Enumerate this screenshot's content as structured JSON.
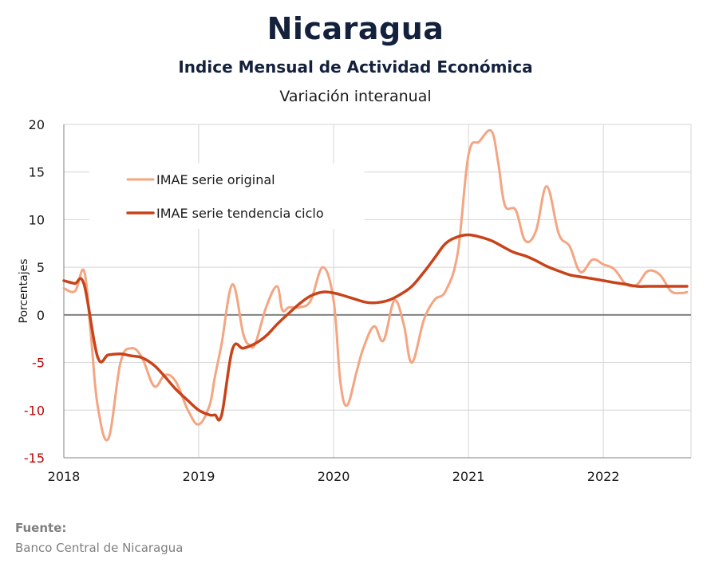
{
  "header": {
    "title": "Nicaragua",
    "subtitle": "Indice Mensual de  Actividad Económica",
    "subsubtitle": "Variación interanual"
  },
  "source": {
    "label": "Fuente:",
    "text": "Banco Central de Nicaragua"
  },
  "chart_data": {
    "type": "line",
    "title": "Nicaragua",
    "subtitle": "Variación interanual",
    "ylabel": "Porcentajes",
    "xlabel": "",
    "ylim": [
      -15,
      20
    ],
    "yticks": [
      20,
      15,
      10,
      5,
      0,
      -5,
      -10,
      -15
    ],
    "xlim": [
      2018.0,
      2022.65
    ],
    "xticks": [
      2018,
      2019,
      2020,
      2021,
      2022
    ],
    "xtick_labels": [
      "2018",
      "2019",
      "2020",
      "2021",
      "2022"
    ],
    "grid": true,
    "negative_tick_color": "#c00000",
    "legend_position": "upper-left",
    "series": [
      {
        "name": "IMAE serie original",
        "color": "#f4a582",
        "x": [
          2018.0,
          2018.083,
          2018.15,
          2018.2,
          2018.25,
          2018.33,
          2018.42,
          2018.5,
          2018.58,
          2018.67,
          2018.75,
          2018.83,
          2018.92,
          2019.0,
          2019.08,
          2019.12,
          2019.17,
          2019.25,
          2019.33,
          2019.38,
          2019.42,
          2019.5,
          2019.58,
          2019.62,
          2019.67,
          2019.75,
          2019.83,
          2019.92,
          2020.0,
          2020.05,
          2020.1,
          2020.17,
          2020.22,
          2020.3,
          2020.37,
          2020.45,
          2020.52,
          2020.58,
          2020.67,
          2020.75,
          2020.83,
          2020.92,
          2021.0,
          2021.08,
          2021.17,
          2021.22,
          2021.27,
          2021.35,
          2021.42,
          2021.5,
          2021.58,
          2021.67,
          2021.75,
          2021.83,
          2021.92,
          2022.0,
          2022.08,
          2022.17,
          2022.25,
          2022.33,
          2022.42,
          2022.5,
          2022.58,
          2022.62
        ],
        "values": [
          2.8,
          2.5,
          4.6,
          -2.0,
          -9.5,
          -13.0,
          -5.0,
          -3.5,
          -4.5,
          -7.5,
          -6.3,
          -7.0,
          -10.0,
          -11.5,
          -9.5,
          -6.5,
          -3.0,
          3.2,
          -2.0,
          -3.2,
          -3.0,
          0.8,
          3.0,
          0.5,
          0.8,
          0.8,
          1.5,
          5.0,
          1.5,
          -7.0,
          -9.5,
          -6.0,
          -3.5,
          -1.2,
          -2.7,
          1.5,
          -1.0,
          -5.0,
          -0.5,
          1.6,
          2.5,
          6.5,
          16.8,
          18.2,
          19.3,
          16.0,
          11.5,
          11.0,
          7.8,
          8.8,
          13.5,
          8.5,
          7.2,
          4.5,
          5.8,
          5.3,
          4.8,
          3.2,
          3.2,
          4.6,
          4.2,
          2.5,
          2.3,
          2.4
        ]
      },
      {
        "name": "IMAE serie  tendencia ciclo",
        "color": "#c8431a",
        "x": [
          2018.0,
          2018.08,
          2018.15,
          2018.25,
          2018.33,
          2018.42,
          2018.5,
          2018.58,
          2018.67,
          2018.75,
          2018.83,
          2018.92,
          2019.0,
          2019.08,
          2019.12,
          2019.17,
          2019.25,
          2019.33,
          2019.42,
          2019.5,
          2019.58,
          2019.67,
          2019.75,
          2019.83,
          2019.92,
          2020.0,
          2020.08,
          2020.17,
          2020.25,
          2020.33,
          2020.42,
          2020.5,
          2020.58,
          2020.67,
          2020.75,
          2020.83,
          2020.92,
          2021.0,
          2021.08,
          2021.17,
          2021.25,
          2021.33,
          2021.42,
          2021.5,
          2021.58,
          2021.67,
          2021.75,
          2021.83,
          2021.92,
          2022.0,
          2022.08,
          2022.17,
          2022.25,
          2022.33,
          2022.42,
          2022.5,
          2022.58,
          2022.62
        ],
        "values": [
          3.6,
          3.3,
          3.2,
          -4.4,
          -4.2,
          -4.1,
          -4.3,
          -4.5,
          -5.3,
          -6.5,
          -7.8,
          -9.0,
          -10.0,
          -10.5,
          -10.5,
          -10.5,
          -3.6,
          -3.5,
          -3.0,
          -2.2,
          -1.0,
          0.2,
          1.2,
          2.0,
          2.4,
          2.3,
          2.0,
          1.6,
          1.3,
          1.3,
          1.6,
          2.2,
          3.0,
          4.5,
          6.0,
          7.5,
          8.2,
          8.4,
          8.2,
          7.8,
          7.2,
          6.6,
          6.2,
          5.7,
          5.1,
          4.6,
          4.2,
          4.0,
          3.8,
          3.6,
          3.4,
          3.2,
          3.0,
          3.0,
          3.0,
          3.0,
          3.0,
          3.0
        ]
      }
    ]
  }
}
